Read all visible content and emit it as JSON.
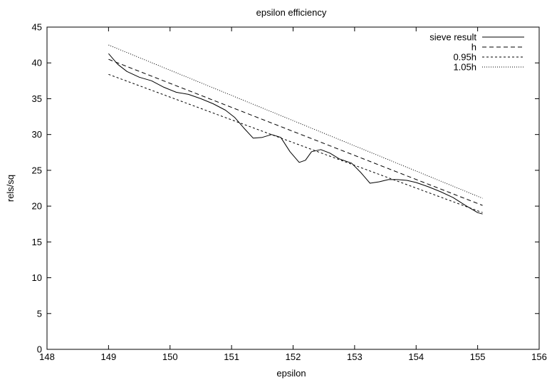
{
  "chart_data": {
    "type": "line",
    "title": "epsilon efficiency",
    "xlabel": "epsilon",
    "ylabel": "rels/sq",
    "xlim": [
      148,
      156
    ],
    "ylim": [
      0,
      45
    ],
    "xticks": [
      148,
      149,
      150,
      151,
      152,
      153,
      154,
      155,
      156
    ],
    "yticks": [
      0,
      5,
      10,
      15,
      20,
      25,
      30,
      35,
      40,
      45
    ],
    "xtick_labels": [
      "148",
      "149",
      "150",
      "151",
      "152",
      "153",
      "154",
      "155",
      "156"
    ],
    "ytick_labels": [
      "0",
      "5",
      "10",
      "15",
      "20",
      "25",
      "30",
      "35",
      "40",
      "45"
    ],
    "grid": false,
    "legend_position": "top-right",
    "series": [
      {
        "name": "sieve result",
        "style": "solid",
        "x": [
          149.0,
          149.15,
          149.3,
          149.5,
          149.7,
          149.9,
          150.1,
          150.3,
          150.5,
          150.7,
          150.9,
          151.05,
          151.2,
          151.35,
          151.5,
          151.65,
          151.8,
          151.95,
          152.1,
          152.2,
          152.3,
          152.45,
          152.6,
          152.75,
          152.95,
          153.1,
          153.25,
          153.4,
          153.55,
          153.7,
          153.85,
          154.0,
          154.2,
          154.4,
          154.6,
          154.8,
          155.0,
          155.08
        ],
        "y": [
          41.3,
          39.8,
          38.8,
          38.0,
          37.5,
          36.6,
          35.9,
          35.6,
          35.0,
          34.3,
          33.4,
          32.4,
          30.9,
          29.5,
          29.6,
          30.0,
          29.6,
          27.6,
          26.1,
          26.4,
          27.6,
          27.9,
          27.4,
          26.6,
          26.0,
          24.7,
          23.2,
          23.4,
          23.7,
          23.7,
          23.6,
          23.3,
          22.7,
          22.0,
          21.2,
          20.1,
          19.1,
          18.9
        ]
      },
      {
        "name": "h",
        "style": "dashed",
        "x0": 149.0,
        "y0": 40.5,
        "x1": 155.08,
        "y1": 20.1
      },
      {
        "name": "0.95h",
        "style": "short-dash",
        "x0": 149.0,
        "y0": 38.4,
        "x1": 155.08,
        "y1": 19.1
      },
      {
        "name": "1.05h",
        "style": "dotted",
        "x0": 149.0,
        "y0": 42.5,
        "x1": 155.08,
        "y1": 21.1
      }
    ]
  }
}
